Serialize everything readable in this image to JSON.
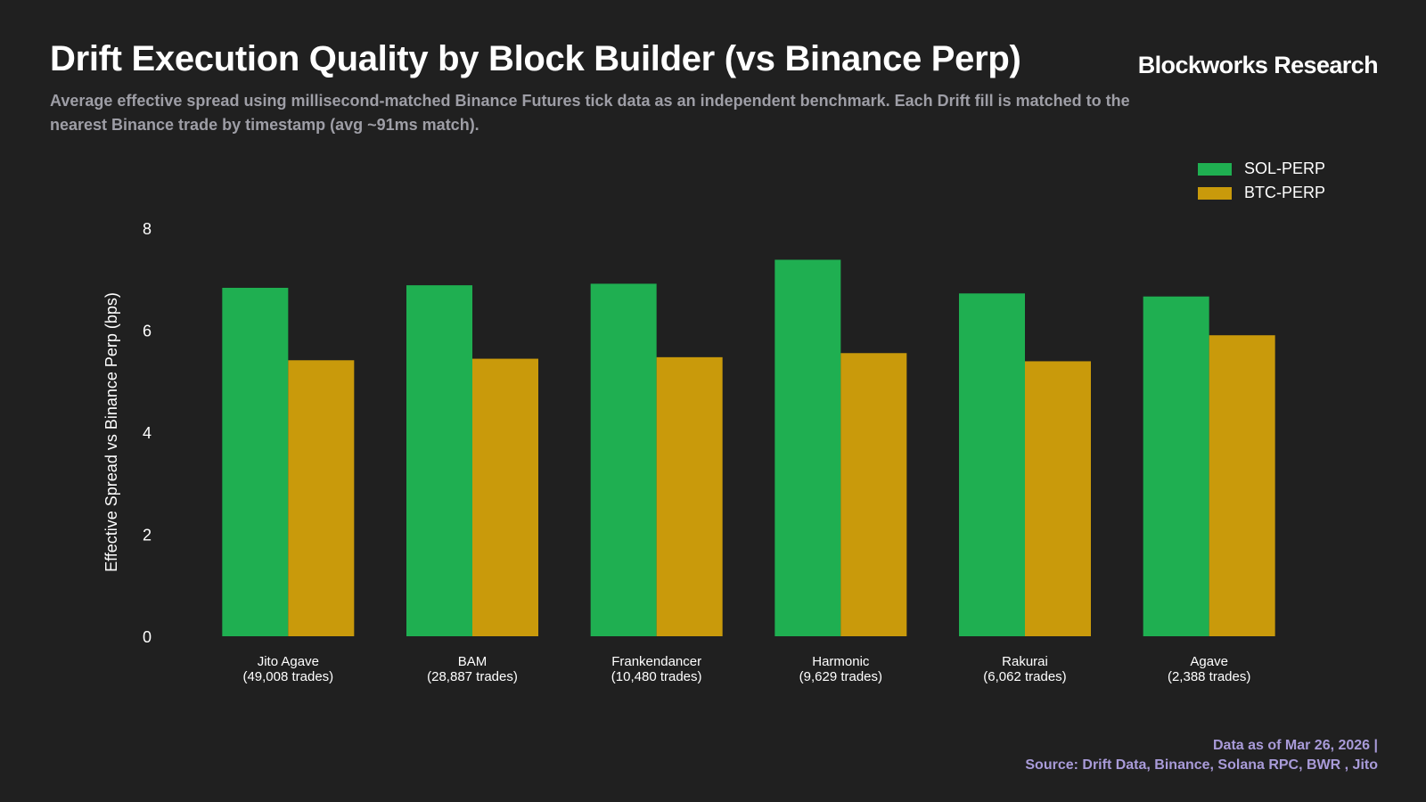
{
  "header": {
    "title": "Drift Execution Quality by Block Builder (vs Binance Perp)",
    "subtitle": "Average effective spread using millisecond-matched Binance Futures tick data as an independent benchmark. Each Drift fill is matched to the nearest Binance trade by timestamp (avg ~91ms match).",
    "brand": "Blockworks Research"
  },
  "footer": {
    "date_line": "Data as of Mar 26, 2026 |",
    "source_line": "Source: Drift Data, Binance, Solana RPC, BWR , Jito"
  },
  "colors": {
    "sol": "#1faf51",
    "btc": "#c99a0b",
    "background": "#202020",
    "footer_text": "#a99bd9"
  },
  "chart_data": {
    "type": "bar",
    "title": "Drift Execution Quality by Block Builder (vs Binance Perp)",
    "xlabel": "",
    "ylabel": "Effective Spread vs Binance Perp (bps)",
    "ylim": [
      0,
      8
    ],
    "yticks": [
      0,
      2,
      4,
      6,
      8
    ],
    "grid": false,
    "legend_position": "top-right",
    "categories": [
      {
        "name": "Jito Agave",
        "trades": "(49,008 trades)"
      },
      {
        "name": "BAM",
        "trades": "(28,887 trades)"
      },
      {
        "name": "Frankendancer",
        "trades": "(10,480 trades)"
      },
      {
        "name": "Harmonic",
        "trades": "(9,629 trades)"
      },
      {
        "name": "Rakurai",
        "trades": "(6,062 trades)"
      },
      {
        "name": "Agave",
        "trades": "(2,388 trades)"
      }
    ],
    "series": [
      {
        "name": "SOL-PERP",
        "color": "#1faf51",
        "values": [
          6.83,
          6.88,
          6.91,
          7.38,
          6.72,
          6.66
        ]
      },
      {
        "name": "BTC-PERP",
        "color": "#c99a0b",
        "values": [
          5.41,
          5.44,
          5.47,
          5.55,
          5.39,
          5.9
        ]
      }
    ]
  }
}
